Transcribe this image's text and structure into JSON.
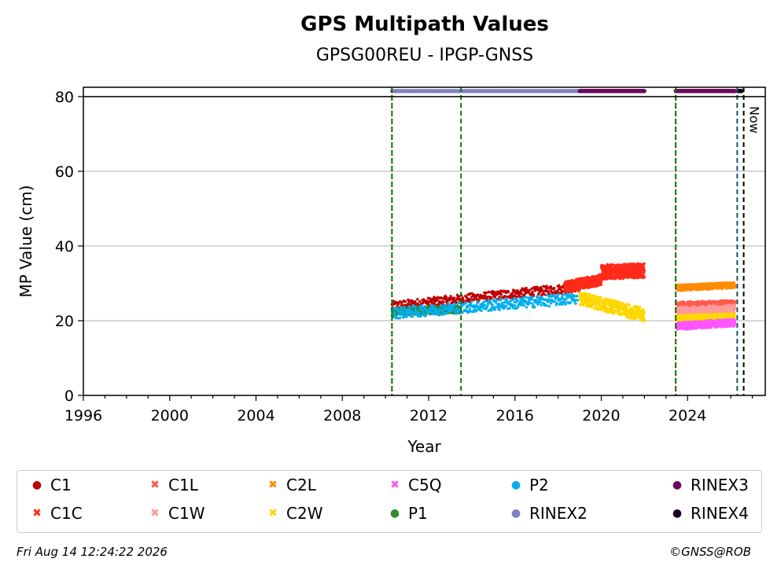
{
  "chart_data": {
    "type": "scatter",
    "title": "GPS Multipath Values",
    "subtitle": "GPSG00REU - IPGP-GNSS",
    "xlabel": "Year",
    "ylabel": "MP Value (cm)",
    "xlim": [
      1996,
      2027.6
    ],
    "ylim": [
      0,
      82.5
    ],
    "xticks": [
      "1996",
      "2000",
      "2004",
      "2008",
      "2012",
      "2016",
      "2020",
      "2024"
    ],
    "yticks": [
      "0",
      "20",
      "40",
      "60",
      "80"
    ],
    "grid": "horizontal",
    "now_label": "Now",
    "vertical_lines": [
      {
        "x": 2010.3,
        "color": "#b30000",
        "style": "dotted"
      },
      {
        "x": 2010.3,
        "color": "#008000",
        "style": "dashed"
      },
      {
        "x": 2013.5,
        "color": "#008000",
        "style": "dashed"
      },
      {
        "x": 2023.45,
        "color": "#b30000",
        "style": "dotted"
      },
      {
        "x": 2023.45,
        "color": "#008000",
        "style": "dashed"
      },
      {
        "x": 2026.3,
        "color": "#1f4e79",
        "style": "dashed"
      },
      {
        "x": 2026.6,
        "color": "#000000",
        "style": "dashed"
      }
    ],
    "series": [
      {
        "name": "C1",
        "color": "#c00000",
        "marker": "dot",
        "segments": [
          {
            "x0": 2010.3,
            "x1": 2019.0,
            "y0": 24.0,
            "y1": 29.0,
            "noise": 1.2
          }
        ]
      },
      {
        "name": "C1C",
        "color": "#ff2a1a",
        "marker": "x",
        "segments": [
          {
            "x0": 2018.3,
            "x1": 2020.0,
            "y0": 29.0,
            "y1": 31.0,
            "noise": 1.5
          },
          {
            "x0": 2020.0,
            "x1": 2022.0,
            "y0": 33.0,
            "y1": 33.5,
            "noise": 2.0
          }
        ]
      },
      {
        "name": "C1L",
        "color": "#ff5a4a",
        "marker": "x",
        "segments": [
          {
            "x0": 2023.5,
            "x1": 2026.2,
            "y0": 24.0,
            "y1": 24.5,
            "noise": 1.0
          }
        ]
      },
      {
        "name": "C1W",
        "color": "#ff9a9a",
        "marker": "x",
        "segments": [
          {
            "x0": 2023.5,
            "x1": 2026.2,
            "y0": 22.5,
            "y1": 23.0,
            "noise": 1.2
          }
        ]
      },
      {
        "name": "C2L",
        "color": "#ff8c00",
        "marker": "x",
        "segments": [
          {
            "x0": 2023.5,
            "x1": 2026.2,
            "y0": 28.8,
            "y1": 29.5,
            "noise": 0.8
          }
        ]
      },
      {
        "name": "C2W",
        "color": "#ffd700",
        "marker": "x",
        "segments": [
          {
            "x0": 2019.0,
            "x1": 2022.0,
            "y0": 26.0,
            "y1": 21.5,
            "noise": 1.8
          },
          {
            "x0": 2023.5,
            "x1": 2026.2,
            "y0": 20.5,
            "y1": 21.0,
            "noise": 1.0
          }
        ]
      },
      {
        "name": "C5Q",
        "color": "#ff55ff",
        "marker": "x",
        "segments": [
          {
            "x0": 2023.5,
            "x1": 2026.2,
            "y0": 18.5,
            "y1": 19.5,
            "noise": 1.0
          }
        ]
      },
      {
        "name": "P1",
        "color": "#2e8b2e",
        "marker": "dot",
        "segments": [
          {
            "x0": 2010.3,
            "x1": 2013.5,
            "y0": 22.5,
            "y1": 23.0,
            "noise": 1.0
          }
        ]
      },
      {
        "name": "P2",
        "color": "#00aeef",
        "marker": "dot",
        "segments": [
          {
            "x0": 2010.3,
            "x1": 2018.9,
            "y0": 22.0,
            "y1": 26.0,
            "noise": 1.5
          }
        ]
      },
      {
        "name": "RINEX2",
        "color": "#8080c0",
        "marker": "dot",
        "segments": [
          {
            "x0": 2010.3,
            "x1": 2019.0,
            "y0": 81.5,
            "y1": 81.5,
            "noise": 0
          }
        ]
      },
      {
        "name": "RINEX3",
        "color": "#6b0b5e",
        "marker": "dot",
        "segments": [
          {
            "x0": 2019.0,
            "x1": 2022.0,
            "y0": 81.5,
            "y1": 81.5,
            "noise": 0
          },
          {
            "x0": 2023.45,
            "x1": 2026.2,
            "y0": 81.5,
            "y1": 81.5,
            "noise": 0
          }
        ]
      },
      {
        "name": "RINEX4",
        "color": "#1a0020",
        "marker": "dot",
        "segments": [
          {
            "x0": 2026.35,
            "x1": 2026.5,
            "y0": 81.5,
            "y1": 81.5,
            "noise": 0
          }
        ]
      }
    ]
  },
  "legend": {
    "items": [
      {
        "label": "C1",
        "color": "#c00000",
        "symbol": "●"
      },
      {
        "label": "C1C",
        "color": "#ff2a1a",
        "symbol": "✖"
      },
      {
        "label": "C1L",
        "color": "#ff5a4a",
        "symbol": "✖"
      },
      {
        "label": "C1W",
        "color": "#ff9a9a",
        "symbol": "✖"
      },
      {
        "label": "C2L",
        "color": "#ff8c00",
        "symbol": "✖"
      },
      {
        "label": "C2W",
        "color": "#ffd700",
        "symbol": "✖"
      },
      {
        "label": "C5Q",
        "color": "#ff55ff",
        "symbol": "✖"
      },
      {
        "label": "P1",
        "color": "#2e8b2e",
        "symbol": "●"
      },
      {
        "label": "P2",
        "color": "#00aeef",
        "symbol": "●"
      },
      {
        "label": "RINEX2",
        "color": "#8080c0",
        "symbol": "●"
      },
      {
        "label": "RINEX3",
        "color": "#6b0b5e",
        "symbol": "●"
      },
      {
        "label": "RINEX4",
        "color": "#1a0020",
        "symbol": "●"
      }
    ]
  },
  "footer": {
    "timestamp": "Fri Aug 14 12:24:22 2026",
    "copyright": "©GNSS@ROB"
  }
}
